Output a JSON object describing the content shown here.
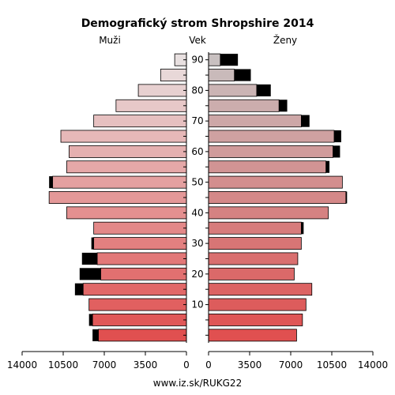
{
  "chart_data": {
    "type": "bar",
    "orientation": "horizontal-population-pyramid",
    "title": "Demografický strom Shropshire 2014",
    "left_label": "Muži",
    "center_label": "Vek",
    "right_label": "Ženy",
    "footer": "www.iz.sk/RUKG22",
    "x_ticks_left": [
      "14000",
      "10500",
      "7000",
      "3500",
      "0"
    ],
    "x_ticks_right": [
      "0",
      "3500",
      "7000",
      "10500",
      "14000"
    ],
    "xlim": [
      0,
      14000
    ],
    "age_groups": [
      "0-4",
      "5-9",
      "10-14",
      "15-19",
      "20-24",
      "25-29",
      "30-34",
      "35-39",
      "40-44",
      "45-49",
      "50-54",
      "55-59",
      "60-64",
      "65-69",
      "70-74",
      "75-79",
      "80-84",
      "85-89",
      "90+"
    ],
    "age_tick_labels": [
      "",
      "",
      "10",
      "",
      "20",
      "",
      "30",
      "",
      "40",
      "",
      "50",
      "",
      "60",
      "",
      "70",
      "",
      "80",
      "",
      "90"
    ],
    "series": [
      {
        "name": "Muži",
        "values": [
          7500,
          8000,
          8300,
          8800,
          7300,
          7600,
          7900,
          7900,
          10200,
          11700,
          11400,
          10200,
          10000,
          10700,
          7900,
          6000,
          4100,
          2200,
          1000
        ],
        "excess": [
          500,
          300,
          0,
          700,
          1800,
          1300,
          200,
          0,
          0,
          0,
          300,
          0,
          0,
          0,
          0,
          0,
          0,
          0,
          0
        ]
      },
      {
        "name": "Ženy",
        "values": [
          7500,
          8000,
          8300,
          8800,
          7300,
          7600,
          7900,
          7900,
          10200,
          11700,
          11400,
          10000,
          10600,
          10700,
          7900,
          6000,
          4100,
          2200,
          1000
        ],
        "excess": [
          0,
          0,
          0,
          0,
          0,
          0,
          0,
          200,
          0,
          100,
          0,
          300,
          600,
          600,
          700,
          700,
          1200,
          1400,
          1500
        ]
      }
    ],
    "colors": {
      "young": "#e05050",
      "old": "#e8e0e0",
      "female_old": "#c8c0c0",
      "excess": "#000000",
      "axis": "#000000"
    }
  }
}
